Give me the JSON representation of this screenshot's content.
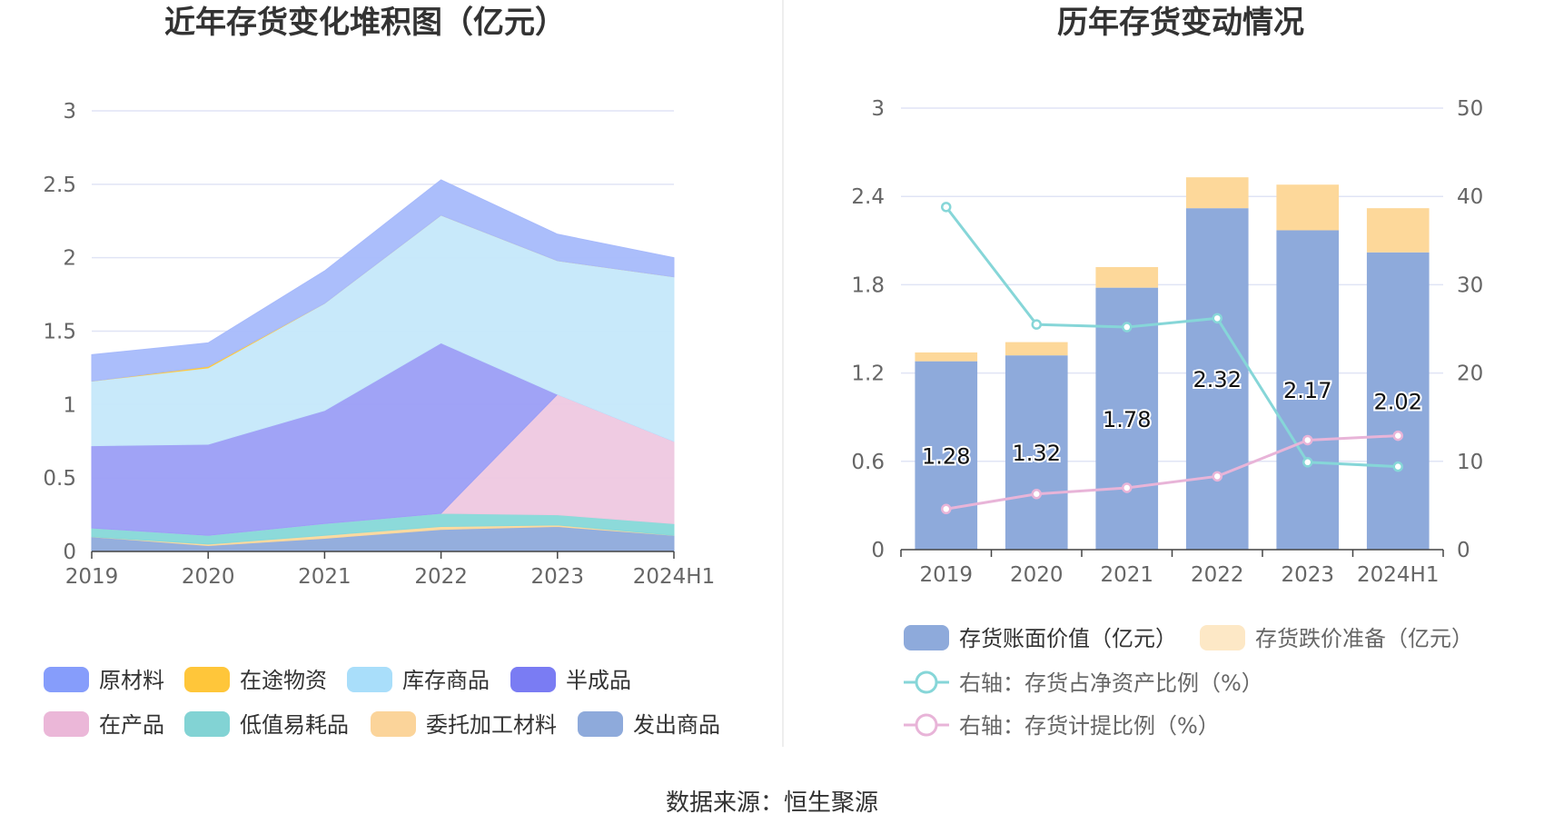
{
  "source_text": "数据来源：恒生聚源",
  "chart_data": [
    {
      "type": "area",
      "stacked": true,
      "title": "近年存货变化堆积图（亿元）",
      "categories": [
        "2019",
        "2020",
        "2021",
        "2022",
        "2023",
        "2024H1"
      ],
      "ylim": [
        0,
        3
      ],
      "yticks": [
        "0",
        "0.5",
        "1",
        "1.5",
        "2",
        "2.5",
        "3"
      ],
      "grid": true,
      "legend_position": "bottom",
      "series": [
        {
          "name": "发出商品",
          "color": "#8eaadb",
          "values": [
            0.1,
            0.04,
            0.09,
            0.15,
            0.17,
            0.11
          ]
        },
        {
          "name": "委托加工材料",
          "color": "#fcd89c",
          "values": [
            0.0,
            0.01,
            0.02,
            0.02,
            0.01,
            0.0
          ]
        },
        {
          "name": "低值易耗品",
          "color": "#86d8d8",
          "values": [
            0.06,
            0.06,
            0.08,
            0.09,
            0.07,
            0.08
          ]
        },
        {
          "name": "在产品",
          "color": "#eec8e0",
          "values": [
            0.0,
            0.0,
            0.0,
            0.0,
            0.82,
            0.56
          ]
        },
        {
          "name": "半成品",
          "color": "#9b9ef6",
          "values": [
            0.56,
            0.62,
            0.77,
            1.16,
            0.0,
            0.0
          ]
        },
        {
          "name": "库存商品",
          "color": "#c5e8fa",
          "values": [
            0.44,
            0.52,
            0.73,
            0.87,
            0.91,
            1.12
          ]
        },
        {
          "name": "在途物资",
          "color": "#ffc83d",
          "values": [
            0.0,
            0.01,
            0.0,
            0.0,
            0.0,
            0.0
          ]
        },
        {
          "name": "原材料",
          "color": "#a7bafb",
          "values": [
            0.18,
            0.16,
            0.22,
            0.24,
            0.18,
            0.13
          ]
        }
      ],
      "legend": [
        {
          "name": "原材料",
          "color": "#869dfb"
        },
        {
          "name": "在途物资",
          "color": "#ffc63a"
        },
        {
          "name": "库存商品",
          "color": "#a9defa"
        },
        {
          "name": "半成品",
          "color": "#7a7cf3"
        },
        {
          "name": "在产品",
          "color": "#ebb7d8"
        },
        {
          "name": "低值易耗品",
          "color": "#82d3d4"
        },
        {
          "name": "委托加工材料",
          "color": "#fbd49a"
        },
        {
          "name": "发出商品",
          "color": "#8eaadb"
        }
      ]
    },
    {
      "type": "bar",
      "stacked": true,
      "title": "历年存货变动情况",
      "categories": [
        "2019",
        "2020",
        "2021",
        "2022",
        "2023",
        "2024H1"
      ],
      "ylim": [
        0,
        3
      ],
      "yticks": [
        "0",
        "0.6",
        "1.2",
        "1.8",
        "2.4",
        "3"
      ],
      "y2lim": [
        0,
        50
      ],
      "y2ticks": [
        "0",
        "10",
        "20",
        "30",
        "40",
        "50"
      ],
      "grid": true,
      "legend_position": "bottom",
      "series": [
        {
          "name": "存货账面价值（亿元）",
          "color": "#8eaadb",
          "axis": "left",
          "values": [
            1.28,
            1.32,
            1.78,
            2.32,
            2.17,
            2.02
          ],
          "labels": [
            "1.28",
            "1.32",
            "1.78",
            "2.32",
            "2.17",
            "2.02"
          ]
        },
        {
          "name": "存货跌价准备（亿元）",
          "color": "#fdd89a",
          "axis": "left",
          "values": [
            0.06,
            0.09,
            0.14,
            0.21,
            0.31,
            0.3
          ]
        }
      ],
      "lines": [
        {
          "name": "右轴：存货占净资产比例（%）",
          "color": "#86d6d8",
          "axis": "right",
          "values": [
            38.8,
            25.5,
            25.2,
            26.2,
            9.9,
            9.4
          ]
        },
        {
          "name": "右轴：存货计提比例（%）",
          "color": "#e8b4d8",
          "axis": "right",
          "values": [
            4.6,
            6.3,
            7.0,
            8.3,
            12.4,
            12.9
          ]
        }
      ],
      "legend_entries": [
        {
          "name": "存货账面价值（亿元）",
          "color": "#8eaadb",
          "kind": "box"
        },
        {
          "name": "存货跌价准备（亿元）",
          "color": "#fde8c6",
          "kind": "box"
        },
        {
          "name": "右轴：存货占净资产比例（%）",
          "color": "#86d6d8",
          "kind": "line"
        },
        {
          "name": "右轴：存货计提比例（%）",
          "color": "#e8b4d8",
          "kind": "line"
        }
      ]
    }
  ]
}
